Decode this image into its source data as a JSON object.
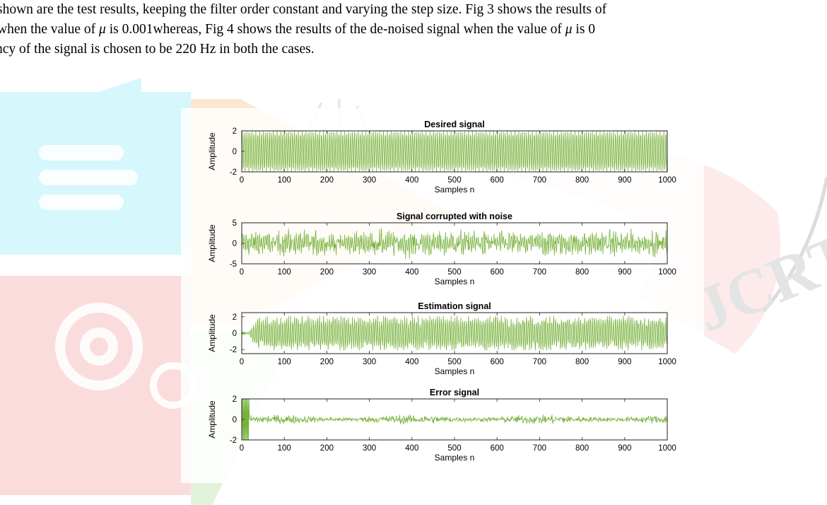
{
  "paragraph": {
    "line1": " shown are the test results, keeping the filter order constant and varying the step size. Fig 3 shows the results of",
    "line2_a": " when the value of ",
    "mu": "μ",
    "line2_b": " is 0.001whereas, Fig 4 shows the results of the de-noised signal when the value of ",
    "mu2": "μ",
    "line2_c": " is 0",
    "line3": "ncy of the signal is chosen to be 220 Hz in both the cases."
  },
  "colors": {
    "signal": "#77b13a",
    "watermark_cyan": "#d6f7fb",
    "watermark_orange": "#fde6d2",
    "watermark_red": "#fbdcdc",
    "watermark_green": "#e2f3d9",
    "watermark_gray": "#e9e9e9"
  },
  "watermark_text": "JCRT",
  "chart_data": [
    {
      "type": "line",
      "title": "Desired signal",
      "xlabel": "Samples n",
      "ylabel": "Amplitude",
      "xlim": [
        0,
        1000
      ],
      "ylim": [
        -2,
        2
      ],
      "xticks": [
        "0",
        "100",
        "200",
        "300",
        "400",
        "500",
        "600",
        "700",
        "800",
        "900",
        "1000"
      ],
      "yticks": [
        "2",
        "0",
        "-2"
      ],
      "envelope": "constant amplitude 2 sinusoid over samples 1–1000"
    },
    {
      "type": "line",
      "title": "Signal corrupted with noise",
      "xlabel": "Samples n",
      "ylabel": "Amplitude",
      "xlim": [
        0,
        1000
      ],
      "ylim": [
        -5,
        5
      ],
      "xticks": [
        "0",
        "100",
        "200",
        "300",
        "400",
        "500",
        "600",
        "700",
        "800",
        "900",
        "1000"
      ],
      "yticks": [
        "5",
        "0",
        "-5"
      ],
      "envelope": "noisy signal, peaks about ±4"
    },
    {
      "type": "line",
      "title": "Estimation signal",
      "xlabel": "Samples n",
      "ylabel": "Amplitude",
      "xlim": [
        0,
        1000
      ],
      "ylim": [
        -2.5,
        2.5
      ],
      "xticks": [
        "0",
        "100",
        "200",
        "300",
        "400",
        "500",
        "600",
        "700",
        "800",
        "900",
        "1000"
      ],
      "yticks": [
        "2",
        "0",
        "-2"
      ],
      "envelope": "starts ~0 at n=10, reaches ~±2 by n=30 and stays"
    },
    {
      "type": "line",
      "title": "Error signal",
      "xlabel": "Samples n",
      "ylabel": "Amplitude",
      "xlim": [
        0,
        1000
      ],
      "ylim": [
        -2,
        2
      ],
      "xticks": [
        "0",
        "100",
        "200",
        "300",
        "400",
        "500",
        "600",
        "700",
        "800",
        "900",
        "1000"
      ],
      "yticks": [
        "2",
        "0",
        "-2"
      ],
      "envelope": "large ±2 transient near n=0–20, then small residual ±0.4"
    }
  ]
}
